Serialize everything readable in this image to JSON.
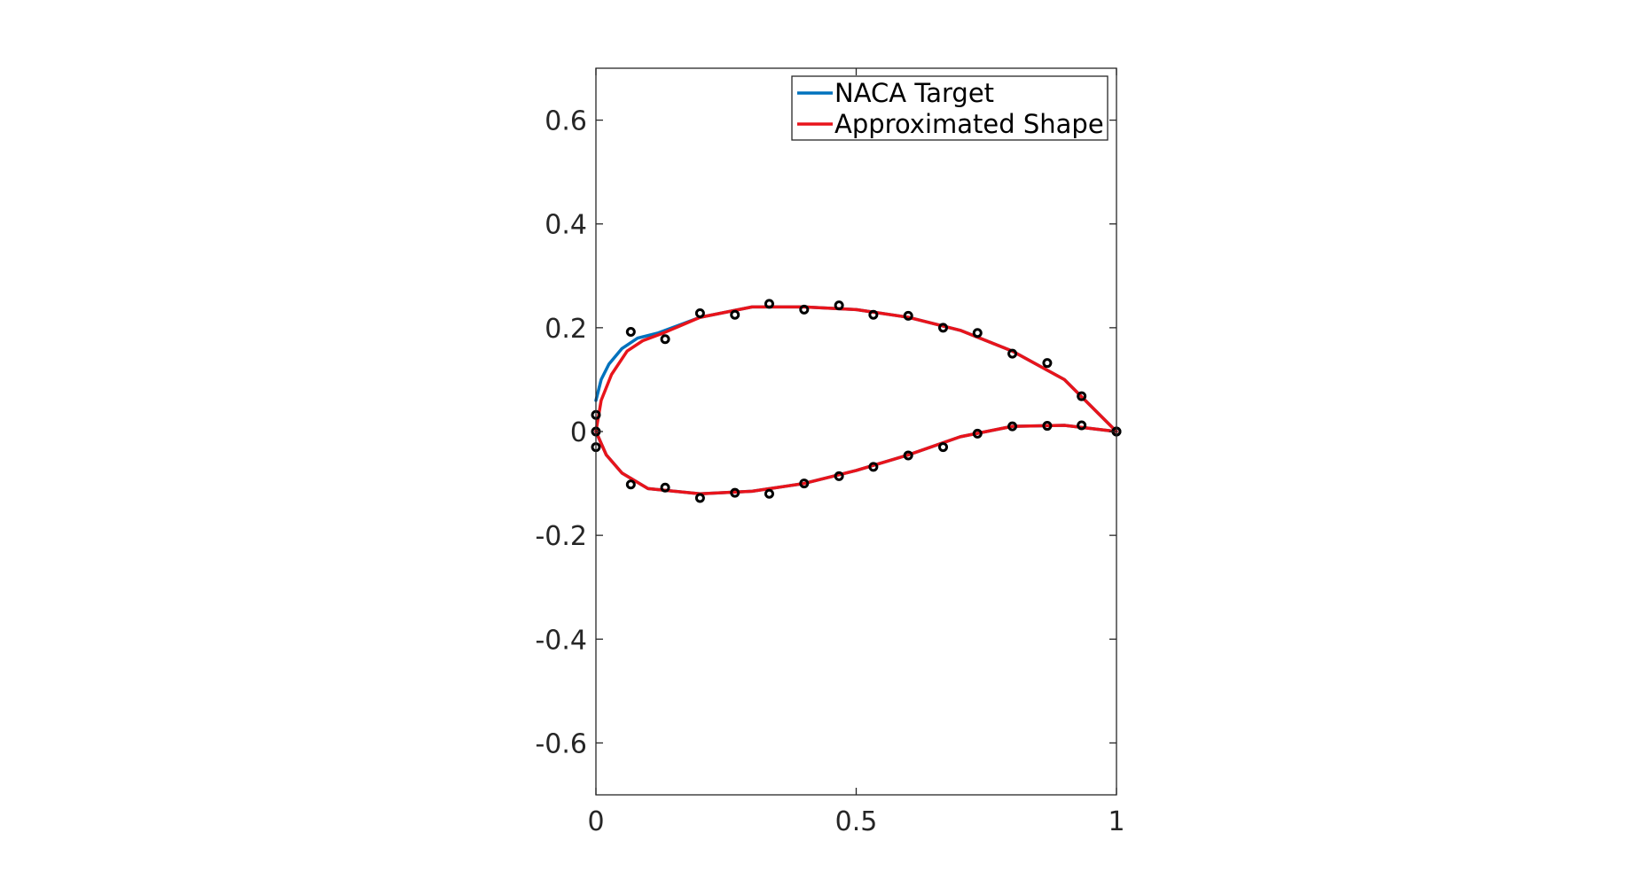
{
  "chart_data": {
    "type": "line",
    "title": "",
    "xlabel": "",
    "ylabel": "",
    "xlim": [
      0,
      1
    ],
    "ylim": [
      -0.7,
      0.7
    ],
    "xticks": [
      0,
      0.5,
      1
    ],
    "xtick_labels": [
      "0",
      "0.5",
      "1"
    ],
    "yticks": [
      -0.6,
      -0.4,
      -0.2,
      0,
      0.2,
      0.4,
      0.6
    ],
    "ytick_labels": [
      "-0.6",
      "-0.4",
      "-0.2",
      "0",
      "0.2",
      "0.4",
      "0.6"
    ],
    "grid": false,
    "legend_position": "top-right",
    "colors": {
      "naca": "#0072BD",
      "approx": "#E8141B",
      "points": "#000000",
      "axes": "#262626"
    },
    "series": [
      {
        "name": "NACA Target",
        "color": "#0072BD",
        "x": [
          0,
          0.01,
          0.025,
          0.05,
          0.08,
          0.12,
          0.2,
          0.3,
          0.4,
          0.5,
          0.6,
          0.7,
          0.8,
          0.9,
          1.0,
          0.9,
          0.8,
          0.7,
          0.6,
          0.5,
          0.4,
          0.3,
          0.2,
          0.1,
          0.05,
          0.02,
          0
        ],
        "y": [
          0.06,
          0.1,
          0.13,
          0.16,
          0.18,
          0.19,
          0.22,
          0.24,
          0.24,
          0.235,
          0.22,
          0.195,
          0.155,
          0.1,
          0.0,
          0.012,
          0.01,
          -0.01,
          -0.045,
          -0.075,
          -0.1,
          -0.115,
          -0.12,
          -0.11,
          -0.08,
          -0.045,
          0
        ]
      },
      {
        "name": "Approximated Shape",
        "color": "#E8141B",
        "x": [
          0,
          0.01,
          0.03,
          0.06,
          0.09,
          0.13,
          0.2,
          0.3,
          0.4,
          0.5,
          0.6,
          0.7,
          0.8,
          0.9,
          1.0,
          0.9,
          0.8,
          0.7,
          0.6,
          0.5,
          0.4,
          0.3,
          0.2,
          0.1,
          0.05,
          0.02,
          0
        ],
        "y": [
          0.0,
          0.06,
          0.11,
          0.155,
          0.175,
          0.19,
          0.22,
          0.24,
          0.24,
          0.235,
          0.22,
          0.195,
          0.155,
          0.1,
          0.0,
          0.012,
          0.01,
          -0.01,
          -0.045,
          -0.075,
          -0.1,
          -0.115,
          -0.12,
          -0.11,
          -0.08,
          -0.045,
          0
        ]
      }
    ],
    "control_points": {
      "color": "#000000",
      "x": [
        0,
        0,
        0,
        0.067,
        0.133,
        0.2,
        0.267,
        0.333,
        0.4,
        0.467,
        0.533,
        0.6,
        0.667,
        0.733,
        0.8,
        0.867,
        0.933,
        1.0,
        0.067,
        0.133,
        0.2,
        0.267,
        0.333,
        0.4,
        0.467,
        0.533,
        0.6,
        0.667,
        0.733,
        0.8,
        0.867,
        0.933,
        1.0
      ],
      "y": [
        0.032,
        0.0,
        -0.03,
        0.192,
        0.178,
        0.228,
        0.225,
        0.246,
        0.235,
        0.243,
        0.225,
        0.223,
        0.2,
        0.19,
        0.15,
        0.132,
        0.068,
        0.0,
        -0.102,
        -0.108,
        -0.128,
        -0.118,
        -0.12,
        -0.1,
        -0.086,
        -0.068,
        -0.046,
        -0.03,
        -0.004,
        0.01,
        0.011,
        0.012,
        0.0
      ]
    }
  }
}
